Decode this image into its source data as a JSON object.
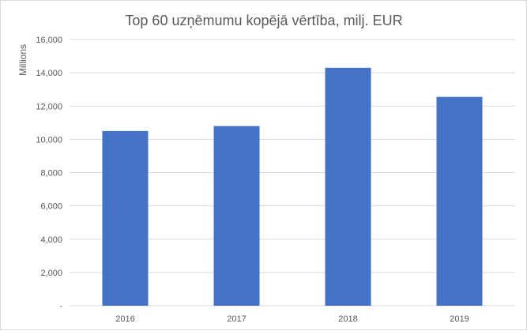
{
  "chart_data": {
    "type": "bar",
    "title": "Top 60 uzņēmumu kopējā vērtība, milj. EUR",
    "ylabel": "Millions",
    "categories": [
      "2016",
      "2017",
      "2018",
      "2019"
    ],
    "values": [
      10500,
      10800,
      14300,
      12550
    ],
    "ylim": [
      0,
      16000
    ],
    "yticks": [
      0,
      2000,
      4000,
      6000,
      8000,
      10000,
      12000,
      14000,
      16000
    ],
    "ytick_labels": [
      "-",
      "2,000",
      "4,000",
      "6,000",
      "8,000",
      "10,000",
      "12,000",
      "14,000",
      "16,000"
    ],
    "grid": true,
    "legend": "none",
    "bar_color": "#4472c4",
    "grid_color": "#d9d9d9"
  }
}
